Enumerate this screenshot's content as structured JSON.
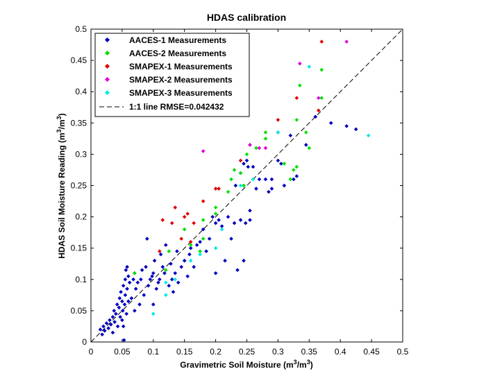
{
  "chart_data": {
    "type": "scatter",
    "title": "HDAS calibration",
    "xlabel_main": "Gravimetric Soil Moisture (m",
    "xlabel_unit": "3",
    "xlabel_mid": "/m",
    "xlabel_end": ")",
    "ylabel_main": "HDAS Soil Moisture Reading (m",
    "ylabel_unit": "3",
    "ylabel_mid": "/m",
    "ylabel_end": ")",
    "xlim": [
      0,
      0.5
    ],
    "ylim": [
      0,
      0.5
    ],
    "xticks": [
      "0",
      "0.05",
      "0.1",
      "0.15",
      "0.2",
      "0.25",
      "0.3",
      "0.35",
      "0.4",
      "0.45",
      "0.5"
    ],
    "yticks": [
      "0",
      "0.05",
      "0.1",
      "0.15",
      "0.2",
      "0.25",
      "0.3",
      "0.35",
      "0.4",
      "0.45",
      "0.5"
    ],
    "legend_position": "top-left",
    "reference_line": {
      "name": "1:1 line RMSE=0.042432",
      "color": "#000000",
      "style": "dashed",
      "from": [
        0,
        0
      ],
      "to": [
        0.5,
        0.5
      ]
    },
    "series": [
      {
        "name": "AACES-1 Measurements",
        "color": "#0000bf",
        "points": [
          [
            0.015,
            0.02
          ],
          [
            0.018,
            0.012
          ],
          [
            0.02,
            0.025
          ],
          [
            0.022,
            0.018
          ],
          [
            0.025,
            0.03
          ],
          [
            0.028,
            0.022
          ],
          [
            0.03,
            0.035
          ],
          [
            0.032,
            0.028
          ],
          [
            0.035,
            0.04
          ],
          [
            0.035,
            0.015
          ],
          [
            0.037,
            0.05
          ],
          [
            0.038,
            0.032
          ],
          [
            0.04,
            0.045
          ],
          [
            0.042,
            0.06
          ],
          [
            0.043,
            0.025
          ],
          [
            0.045,
            0.055
          ],
          [
            0.046,
            0.07
          ],
          [
            0.047,
            0.04
          ],
          [
            0.048,
            0.08
          ],
          [
            0.05,
            0.065
          ],
          [
            0.05,
            0.035
          ],
          [
            0.051,
            0.05
          ],
          [
            0.052,
            0.09
          ],
          [
            0.052,
            0.025
          ],
          [
            0.053,
            0.003
          ],
          [
            0.054,
            0.06
          ],
          [
            0.055,
            0.075
          ],
          [
            0.055,
            0.1
          ],
          [
            0.056,
            0.115
          ],
          [
            0.057,
            0.045
          ],
          [
            0.058,
            0.085
          ],
          [
            0.058,
            0.12
          ],
          [
            0.06,
            0.065
          ],
          [
            0.06,
            0.105
          ],
          [
            0.062,
            0.095
          ],
          [
            0.065,
            0.07
          ],
          [
            0.068,
            0.1
          ],
          [
            0.07,
            0.11
          ],
          [
            0.07,
            0.05
          ],
          [
            0.072,
            0.085
          ],
          [
            0.075,
            0.095
          ],
          [
            0.078,
            0.06
          ],
          [
            0.08,
            0.1
          ],
          [
            0.082,
            0.115
          ],
          [
            0.085,
            0.075
          ],
          [
            0.088,
            0.12
          ],
          [
            0.09,
            0.165
          ],
          [
            0.092,
            0.09
          ],
          [
            0.095,
            0.1
          ],
          [
            0.098,
            0.105
          ],
          [
            0.1,
            0.11
          ],
          [
            0.1,
            0.06
          ],
          [
            0.102,
            0.13
          ],
          [
            0.105,
            0.085
          ],
          [
            0.108,
            0.095
          ],
          [
            0.11,
            0.1
          ],
          [
            0.112,
            0.14
          ],
          [
            0.115,
            0.12
          ],
          [
            0.118,
            0.11
          ],
          [
            0.12,
            0.155
          ],
          [
            0.125,
            0.09
          ],
          [
            0.128,
            0.125
          ],
          [
            0.13,
            0.1
          ],
          [
            0.132,
            0.08
          ],
          [
            0.135,
            0.11
          ],
          [
            0.138,
            0.145
          ],
          [
            0.14,
            0.095
          ],
          [
            0.145,
            0.12
          ],
          [
            0.15,
            0.13
          ],
          [
            0.155,
            0.105
          ],
          [
            0.158,
            0.14
          ],
          [
            0.16,
            0.15
          ],
          [
            0.165,
            0.12
          ],
          [
            0.17,
            0.155
          ],
          [
            0.175,
            0.16
          ],
          [
            0.18,
            0.18
          ],
          [
            0.185,
            0.145
          ],
          [
            0.19,
            0.165
          ],
          [
            0.195,
            0.2
          ],
          [
            0.2,
            0.19
          ],
          [
            0.2,
            0.11
          ],
          [
            0.205,
            0.195
          ],
          [
            0.21,
            0.185
          ],
          [
            0.215,
            0.13
          ],
          [
            0.22,
            0.2
          ],
          [
            0.225,
            0.165
          ],
          [
            0.23,
            0.19
          ],
          [
            0.232,
            0.25
          ],
          [
            0.235,
            0.115
          ],
          [
            0.24,
            0.195
          ],
          [
            0.24,
            0.27
          ],
          [
            0.245,
            0.13
          ],
          [
            0.245,
            0.285
          ],
          [
            0.248,
            0.19
          ],
          [
            0.25,
            0.29
          ],
          [
            0.252,
            0.28
          ],
          [
            0.255,
            0.21
          ],
          [
            0.255,
            0.195
          ],
          [
            0.26,
            0.28
          ],
          [
            0.265,
            0.245
          ],
          [
            0.27,
            0.26
          ],
          [
            0.28,
            0.26
          ],
          [
            0.285,
            0.24
          ],
          [
            0.29,
            0.26
          ],
          [
            0.29,
            0.245
          ],
          [
            0.3,
            0.29
          ],
          [
            0.305,
            0.285
          ],
          [
            0.31,
            0.25
          ],
          [
            0.32,
            0.33
          ],
          [
            0.325,
            0.26
          ],
          [
            0.33,
            0.265
          ],
          [
            0.345,
            0.315
          ],
          [
            0.36,
            0.36
          ],
          [
            0.385,
            0.35
          ],
          [
            0.41,
            0.345
          ],
          [
            0.425,
            0.34
          ]
        ]
      },
      {
        "name": "AACES-2 Measurements",
        "color": "#00e000",
        "points": [
          [
            0.07,
            0.11
          ],
          [
            0.12,
            0.115
          ],
          [
            0.125,
            0.145
          ],
          [
            0.15,
            0.18
          ],
          [
            0.16,
            0.155
          ],
          [
            0.175,
            0.145
          ],
          [
            0.18,
            0.165
          ],
          [
            0.18,
            0.195
          ],
          [
            0.2,
            0.205
          ],
          [
            0.2,
            0.215
          ],
          [
            0.22,
            0.24
          ],
          [
            0.225,
            0.26
          ],
          [
            0.23,
            0.275
          ],
          [
            0.24,
            0.27
          ],
          [
            0.245,
            0.25
          ],
          [
            0.25,
            0.3
          ],
          [
            0.255,
            0.315
          ],
          [
            0.26,
            0.26
          ],
          [
            0.265,
            0.31
          ],
          [
            0.28,
            0.325
          ],
          [
            0.28,
            0.335
          ],
          [
            0.3,
            0.335
          ],
          [
            0.31,
            0.285
          ],
          [
            0.32,
            0.26
          ],
          [
            0.325,
            0.275
          ],
          [
            0.33,
            0.28
          ],
          [
            0.33,
            0.355
          ],
          [
            0.335,
            0.41
          ],
          [
            0.345,
            0.335
          ],
          [
            0.35,
            0.31
          ],
          [
            0.37,
            0.435
          ],
          [
            0.37,
            0.39
          ]
        ]
      },
      {
        "name": "SMAPEX-1 Measurements",
        "color": "#e00000",
        "points": [
          [
            0.11,
            0.145
          ],
          [
            0.115,
            0.195
          ],
          [
            0.13,
            0.19
          ],
          [
            0.135,
            0.215
          ],
          [
            0.145,
            0.165
          ],
          [
            0.15,
            0.2
          ],
          [
            0.155,
            0.205
          ],
          [
            0.16,
            0.16
          ],
          [
            0.165,
            0.19
          ],
          [
            0.18,
            0.225
          ],
          [
            0.2,
            0.245
          ],
          [
            0.205,
            0.245
          ],
          [
            0.24,
            0.29
          ],
          [
            0.3,
            0.355
          ],
          [
            0.33,
            0.39
          ],
          [
            0.365,
            0.37
          ],
          [
            0.37,
            0.48
          ]
        ]
      },
      {
        "name": "SMAPEX-2 Measurements",
        "color": "#e000e0",
        "points": [
          [
            0.18,
            0.305
          ],
          [
            0.255,
            0.315
          ],
          [
            0.27,
            0.31
          ],
          [
            0.28,
            0.31
          ],
          [
            0.3,
            0.335
          ],
          [
            0.335,
            0.445
          ],
          [
            0.365,
            0.39
          ],
          [
            0.41,
            0.48
          ]
        ]
      },
      {
        "name": "SMAPEX-3 Measurements",
        "color": "#00e8e8",
        "points": [
          [
            0.1,
            0.045
          ],
          [
            0.12,
            0.075
          ],
          [
            0.12,
            0.095
          ],
          [
            0.135,
            0.1
          ],
          [
            0.16,
            0.13
          ],
          [
            0.175,
            0.14
          ],
          [
            0.2,
            0.15
          ],
          [
            0.21,
            0.18
          ],
          [
            0.24,
            0.25
          ],
          [
            0.26,
            0.26
          ],
          [
            0.3,
            0.335
          ],
          [
            0.35,
            0.44
          ],
          [
            0.445,
            0.33
          ]
        ]
      }
    ]
  }
}
